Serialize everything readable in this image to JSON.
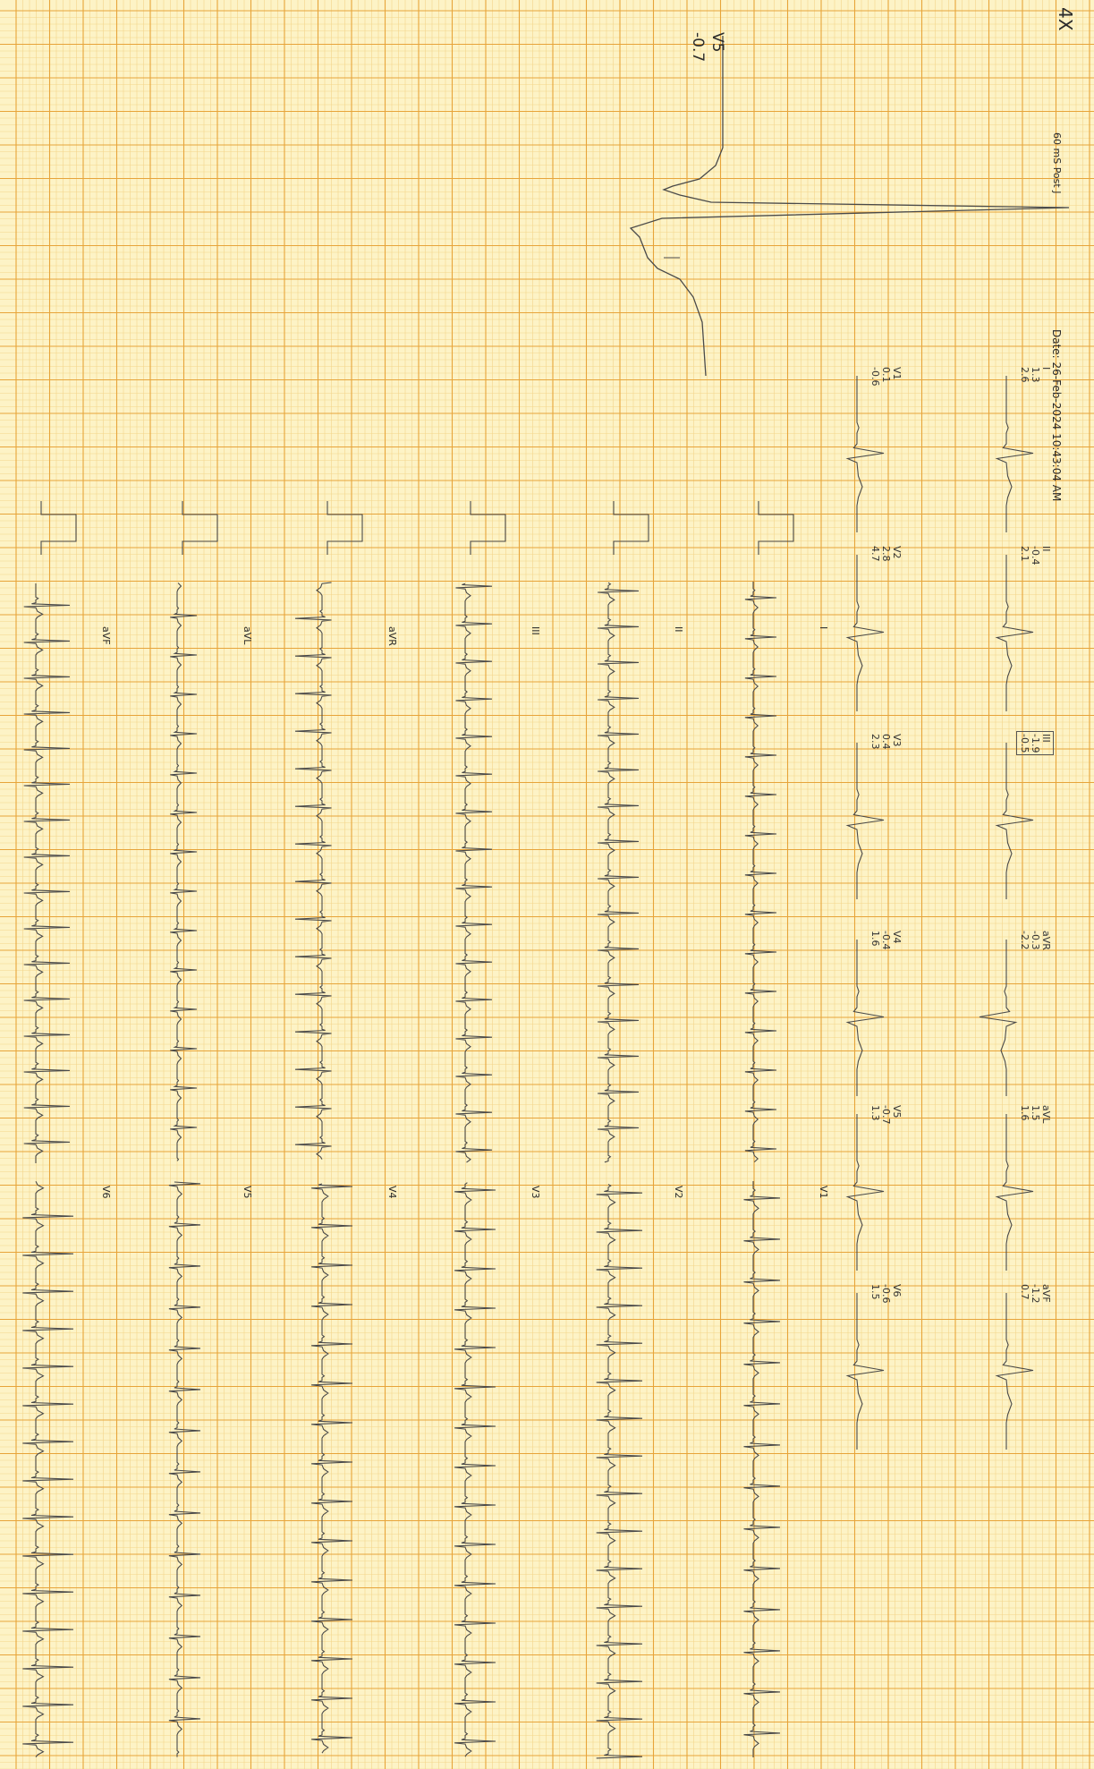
{
  "page": {
    "magnification": "4X",
    "ecg_date": "Date: 26-Feb-2024 10:43:04 AM",
    "post_j_label": "60 mS Post J",
    "enlarged_lead": "V5",
    "enlarged_value": "-0.7"
  },
  "measurements": [
    {
      "lead": "I",
      "v1": "1.3",
      "v2": "2.6"
    },
    {
      "lead": "II",
      "v1": "-0.4",
      "v2": "2.1"
    },
    {
      "lead": "III",
      "v1": "-1.9",
      "v2": "-0.5"
    },
    {
      "lead": "aVR",
      "v1": "-0.3",
      "v2": "-2.2"
    },
    {
      "lead": "aVL",
      "v1": "1.5",
      "v2": "1.6"
    },
    {
      "lead": "aVF",
      "v1": "-1.2",
      "v2": "0.7"
    },
    {
      "lead": "V1",
      "v1": "0.1",
      "v2": "-0.6"
    },
    {
      "lead": "V2",
      "v1": "2.8",
      "v2": "4.7"
    },
    {
      "lead": "V3",
      "v1": "0.4",
      "v2": "2.3"
    },
    {
      "lead": "V4",
      "v1": "-0.4",
      "v2": "1.6"
    },
    {
      "lead": "V5",
      "v1": "-0.7",
      "v2": "1.3"
    },
    {
      "lead": "V6",
      "v1": "-0.6",
      "v2": "1.5"
    }
  ],
  "rhythm_strips": [
    {
      "left_lead": "I",
      "right_lead": "V1"
    },
    {
      "left_lead": "II",
      "right_lead": "V2"
    },
    {
      "left_lead": "III",
      "right_lead": "V3"
    },
    {
      "left_lead": "aVR",
      "right_lead": "V4"
    },
    {
      "left_lead": "aVL",
      "right_lead": "V5"
    },
    {
      "left_lead": "aVF",
      "right_lead": "V6"
    }
  ],
  "colors": {
    "paper": "#fdf3c6",
    "grid_minor": "#f3d58a",
    "grid_major": "#e7a43a",
    "trace": "#4a4a4a"
  }
}
